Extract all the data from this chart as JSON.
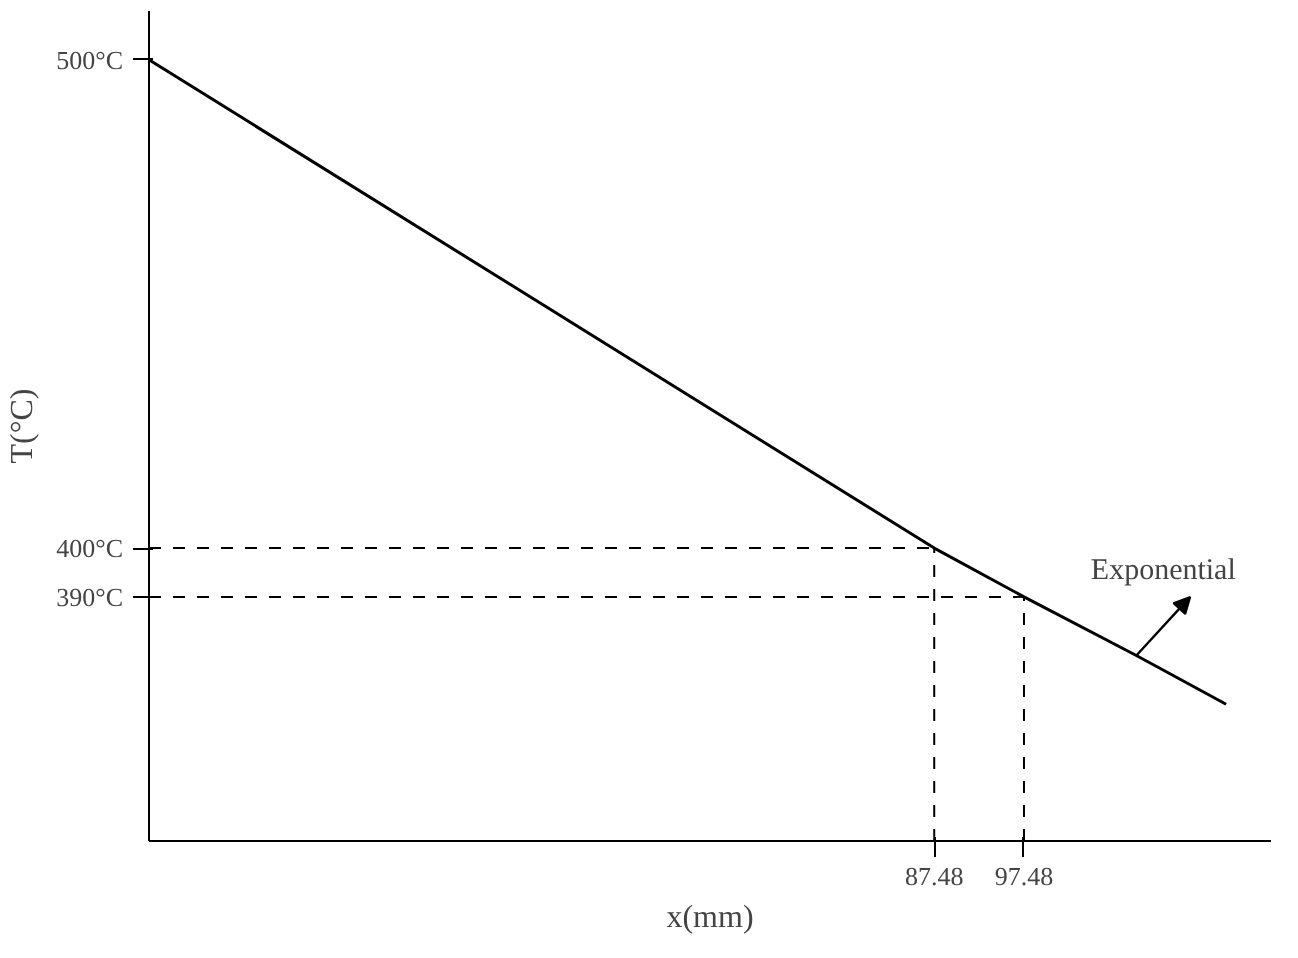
{
  "chart_data": {
    "type": "line",
    "xlabel": "x(mm)",
    "ylabel": "T(°C)",
    "x": [
      0,
      87.48,
      97.48,
      110,
      120
    ],
    "series": [
      {
        "color": "#000000",
        "values": [
          500,
          400,
          390,
          378,
          368
        ]
      }
    ],
    "xlim": [
      0,
      125
    ],
    "ylim": [
      340,
      510
    ],
    "xticks": [
      87.48,
      97.48
    ],
    "yticks": [
      {
        "value": 500,
        "label": "500°C"
      },
      {
        "value": 400,
        "label": "400°C"
      },
      {
        "value": 390,
        "label": "390°C"
      }
    ],
    "ref_lines": [
      {
        "axis": "y",
        "value": 400,
        "line_style": "dashed"
      },
      {
        "axis": "x",
        "value": 87.48,
        "line_style": "dashed"
      },
      {
        "axis": "y",
        "value": 390,
        "line_style": "dashed"
      },
      {
        "axis": "x",
        "value": 97.48,
        "line_style": "dashed"
      }
    ],
    "annotations": [
      {
        "text": "Exponential",
        "x": 110,
        "y": 378
      }
    ],
    "grid": false,
    "marker": "none",
    "line_style": "solid"
  }
}
